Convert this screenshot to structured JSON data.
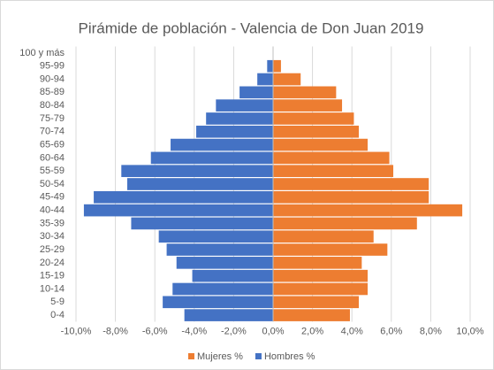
{
  "chart_data": {
    "type": "bar",
    "orientation": "horizontal",
    "title": "Pirámide de población - Valencia de Don Juan 2019",
    "categories": [
      "0-4",
      "5-9",
      "10-14",
      "15-19",
      "20-24",
      "25-29",
      "30-34",
      "35-39",
      "40-44",
      "45-49",
      "50-54",
      "55-59",
      "60-64",
      "65-69",
      "70-74",
      "75-79",
      "80-84",
      "85-89",
      "90-94",
      "95-99",
      "100 y más"
    ],
    "series": [
      {
        "name": "Mujeres %",
        "color": "#ed7d31",
        "values": [
          3.9,
          4.35,
          4.8,
          4.8,
          4.5,
          5.8,
          5.1,
          7.3,
          9.6,
          7.9,
          7.9,
          6.1,
          5.9,
          4.8,
          4.35,
          4.1,
          3.5,
          3.2,
          1.4,
          0.4,
          0
        ]
      },
      {
        "name": "Hombres %",
        "color": "#4472c4",
        "values": [
          -4.5,
          -5.6,
          -5.1,
          -4.1,
          -4.9,
          -5.4,
          -5.8,
          -7.2,
          -9.6,
          -9.1,
          -7.4,
          -7.7,
          -6.2,
          -5.2,
          -3.9,
          -3.4,
          -2.9,
          -1.7,
          -0.8,
          -0.3,
          0
        ]
      }
    ],
    "xlim": [
      -10,
      10
    ],
    "xticks": [
      {
        "value": -10,
        "label": "-10,0%"
      },
      {
        "value": -8,
        "label": "-8,0%"
      },
      {
        "value": -6,
        "label": "-6,0%"
      },
      {
        "value": -4,
        "label": "-4,0%"
      },
      {
        "value": -2,
        "label": "-2,0%"
      },
      {
        "value": 0,
        "label": "0,0%"
      },
      {
        "value": 2,
        "label": "2,0%"
      },
      {
        "value": 4,
        "label": "4,0%"
      },
      {
        "value": 6,
        "label": "6,0%"
      },
      {
        "value": 8,
        "label": "8,0%"
      },
      {
        "value": 10,
        "label": "10,0%"
      }
    ],
    "grid": true,
    "legend": "bottom"
  }
}
